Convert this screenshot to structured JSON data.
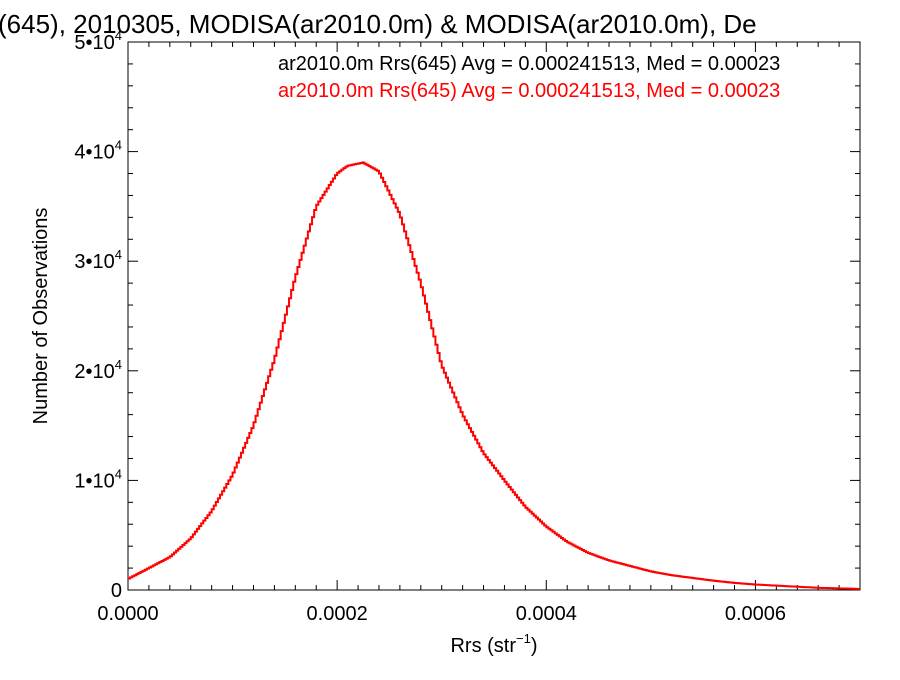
{
  "chart_data": {
    "type": "line",
    "title": "(645), 2010305, MODISA(ar2010.0m) & MODISA(ar2010.0m), De",
    "xlabel": "Rrs (str",
    "xlabel_sup": "−1",
    "xlabel_end": ")",
    "ylabel": "Number of Observations",
    "xlim": [
      0,
      0.0007
    ],
    "ylim": [
      0,
      50000
    ],
    "x_ticks": [
      {
        "value": 0.0,
        "label": "0.0000"
      },
      {
        "value": 0.0002,
        "label": "0.0002"
      },
      {
        "value": 0.0004,
        "label": "0.0004"
      },
      {
        "value": 0.0006,
        "label": "0.0006"
      }
    ],
    "y_ticks": [
      {
        "value": 0,
        "mant": "0",
        "exp": ""
      },
      {
        "value": 10000,
        "mant": "1•10",
        "exp": "4"
      },
      {
        "value": 20000,
        "mant": "2•10",
        "exp": "4"
      },
      {
        "value": 30000,
        "mant": "3•10",
        "exp": "4"
      },
      {
        "value": 40000,
        "mant": "4•10",
        "exp": "4"
      },
      {
        "value": 50000,
        "mant": "5•10",
        "exp": "4"
      }
    ],
    "legend": [
      {
        "text": "ar2010.0m Rrs(645) Avg = 0.000241513, Med = 0.00023",
        "color": "#000000"
      },
      {
        "text": "ar2010.0m Rrs(645) Avg = 0.000241513, Med = 0.00023",
        "color": "#ff0000"
      }
    ],
    "series": [
      {
        "color": "#ff0000",
        "x": [
          0.0,
          2e-05,
          4e-05,
          6e-05,
          8e-05,
          0.0001,
          0.00012,
          0.00014,
          0.00016,
          0.00018,
          0.0002,
          0.00021,
          0.000225,
          0.00024,
          0.00026,
          0.00028,
          0.0003,
          0.00032,
          0.00034,
          0.00036,
          0.00038,
          0.0004,
          0.00042,
          0.00044,
          0.00046,
          0.00048,
          0.0005,
          0.00052,
          0.00054,
          0.00056,
          0.00058,
          0.0006,
          0.00062,
          0.00064,
          0.00066,
          0.00068,
          0.0007
        ],
        "values": [
          1000,
          2000,
          3000,
          4700,
          7200,
          10500,
          15000,
          21000,
          28500,
          35000,
          38000,
          38700,
          39000,
          38200,
          34300,
          28000,
          20500,
          16000,
          12500,
          10000,
          7600,
          5800,
          4400,
          3400,
          2700,
          2200,
          1700,
          1350,
          1100,
          850,
          650,
          500,
          400,
          300,
          200,
          150,
          100
        ]
      }
    ]
  }
}
